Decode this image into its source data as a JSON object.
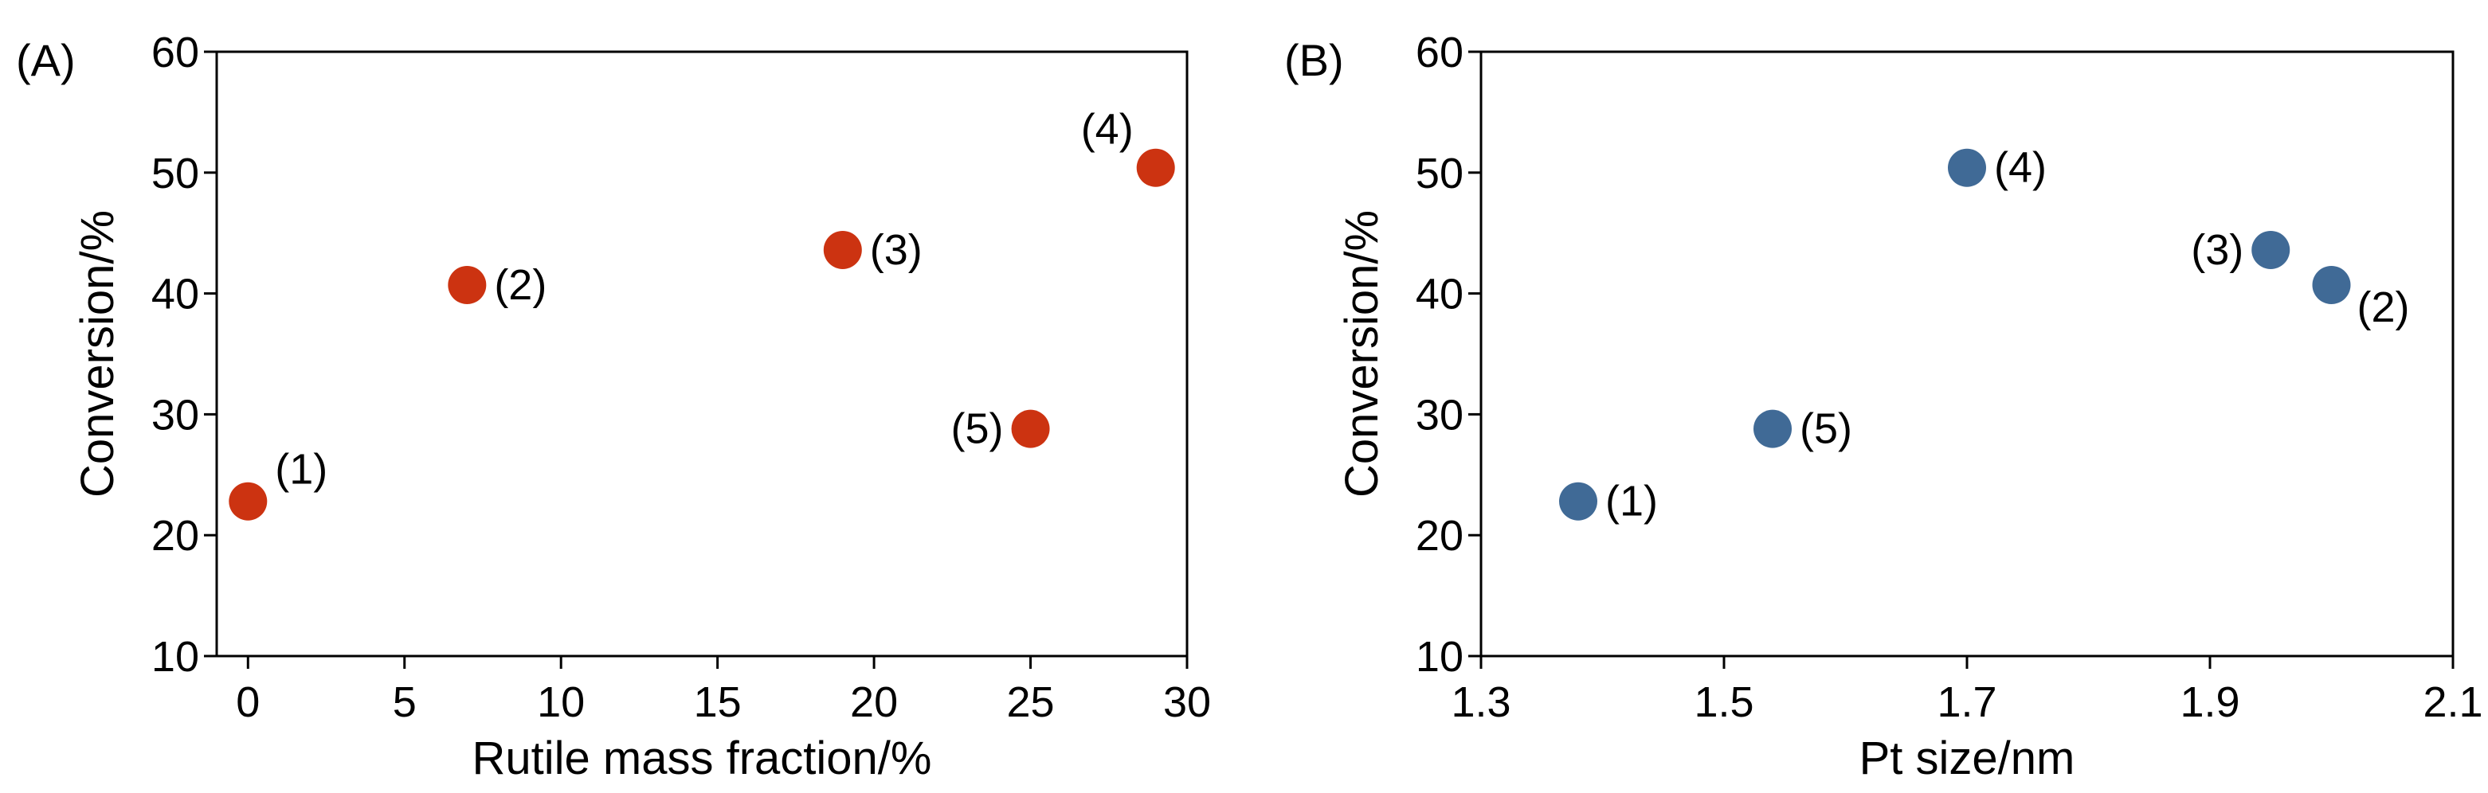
{
  "chart_data": [
    {
      "type": "scatter",
      "panel_label": "(A)",
      "xlabel": "Rutile mass fraction/%",
      "ylabel": "Conversion/%",
      "xlim": [
        -1,
        30
      ],
      "ylim": [
        10,
        60
      ],
      "xticks": [
        0,
        5,
        10,
        15,
        20,
        25,
        30
      ],
      "yticks": [
        10,
        20,
        30,
        40,
        50,
        60
      ],
      "grid": false,
      "color": "#cc3311",
      "points": [
        {
          "label": "(1)",
          "x": 0,
          "y": 22.8,
          "label_pos": "upper-right"
        },
        {
          "label": "(2)",
          "x": 7,
          "y": 40.7,
          "label_pos": "right"
        },
        {
          "label": "(3)",
          "x": 19,
          "y": 43.6,
          "label_pos": "right"
        },
        {
          "label": "(4)",
          "x": 29,
          "y": 50.4,
          "label_pos": "upper-left"
        },
        {
          "label": "(5)",
          "x": 25,
          "y": 28.8,
          "label_pos": "left"
        }
      ]
    },
    {
      "type": "scatter",
      "panel_label": "(B)",
      "xlabel": "Pt size/nm",
      "ylabel": "Conversion/%",
      "xlim": [
        1.3,
        2.1
      ],
      "ylim": [
        10,
        60
      ],
      "xticks": [
        "1.3",
        "1.5",
        "1.7",
        "1.9",
        "2.1"
      ],
      "yticks": [
        10,
        20,
        30,
        40,
        50,
        60
      ],
      "grid": false,
      "color": "#406a96",
      "points": [
        {
          "label": "(1)",
          "x": 1.38,
          "y": 22.8,
          "label_pos": "right"
        },
        {
          "label": "(5)",
          "x": 1.54,
          "y": 28.8,
          "label_pos": "right"
        },
        {
          "label": "(4)",
          "x": 1.7,
          "y": 50.4,
          "label_pos": "right"
        },
        {
          "label": "(3)",
          "x": 1.95,
          "y": 43.6,
          "label_pos": "left"
        },
        {
          "label": "(2)",
          "x": 2.0,
          "y": 40.7,
          "label_pos": "lower-right"
        }
      ]
    }
  ]
}
